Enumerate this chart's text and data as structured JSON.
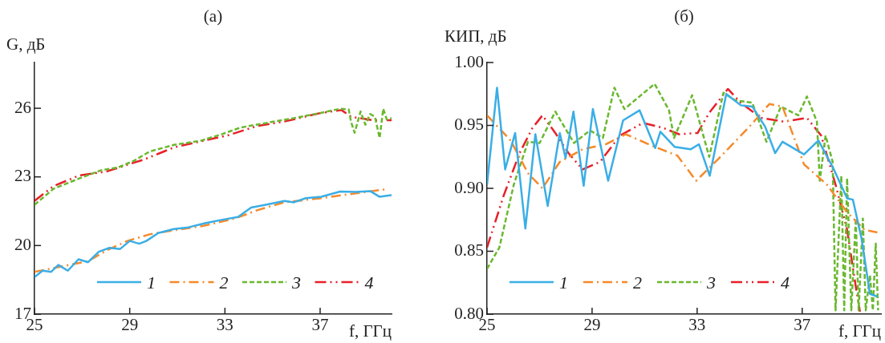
{
  "chart_data": [
    {
      "type": "line",
      "title": "(а)",
      "xlabel": "f, ГГц",
      "ylabel": "G, дБ",
      "xlim": [
        25,
        40
      ],
      "ylim": [
        17,
        28
      ],
      "xticks": [
        25,
        29,
        33,
        37
      ],
      "yticks": [
        17,
        20,
        23,
        26
      ],
      "grid": false,
      "legend": "bottom",
      "series": [
        {
          "name": "1",
          "color": "#3aaee6",
          "line_style": "solid",
          "x": [
            25,
            25.34,
            25.7,
            26.0,
            26.4,
            26.85,
            27.25,
            27.7,
            28.15,
            28.6,
            29.0,
            29.4,
            29.7,
            30.2,
            30.86,
            31.4,
            32.1,
            32.9,
            33.55,
            34.1,
            34.8,
            35.5,
            35.9,
            36.4,
            37.05,
            37.84,
            38.5,
            39.1,
            39.5,
            40
          ],
          "values": [
            18.62,
            18.9,
            18.85,
            19.15,
            18.9,
            19.4,
            19.27,
            19.73,
            19.9,
            19.85,
            20.2,
            20.08,
            20.2,
            20.55,
            20.72,
            20.78,
            20.96,
            21.13,
            21.25,
            21.66,
            21.8,
            21.95,
            21.89,
            22.07,
            22.13,
            22.36,
            22.34,
            22.38,
            22.13,
            22.2
          ]
        },
        {
          "name": "2",
          "color": "#f58a2b",
          "line_style": "dashdot",
          "x": [
            25,
            26.46,
            27.25,
            28.04,
            28.9,
            29.84,
            30.86,
            32.1,
            33.45,
            34.35,
            35.5,
            37.05,
            38.2,
            39.7
          ],
          "values": [
            18.85,
            19.15,
            19.32,
            19.79,
            20.2,
            20.49,
            20.67,
            20.86,
            21.19,
            21.54,
            21.89,
            22.07,
            22.24,
            22.45
          ]
        },
        {
          "name": "3",
          "color": "#6ab82e",
          "line_style": "dashed",
          "x": [
            25,
            25.8,
            26.9,
            27.8,
            28.5,
            29.17,
            29.84,
            30.86,
            31.98,
            32.88,
            33.67,
            34.8,
            35.9,
            37.05,
            37.84,
            38.2,
            38.3,
            38.45,
            38.7,
            38.9,
            39.1,
            39.3,
            39.5,
            39.65,
            39.8,
            40
          ],
          "values": [
            21.78,
            22.48,
            22.94,
            23.29,
            23.41,
            23.7,
            24.11,
            24.4,
            24.58,
            24.87,
            25.16,
            25.37,
            25.57,
            25.8,
            25.98,
            25.95,
            25.4,
            24.93,
            25.86,
            25.28,
            25.75,
            25.63,
            24.7,
            25.98,
            25.51,
            25.57
          ]
        },
        {
          "name": "4",
          "color": "#e8202a",
          "line_style": "dashdotdot",
          "x": [
            25,
            25.8,
            26.9,
            28.04,
            28.9,
            29.6,
            30.86,
            32.1,
            33.1,
            34.35,
            35.5,
            37.05,
            37.9,
            38.3,
            39.2,
            40
          ],
          "values": [
            21.95,
            22.6,
            23.07,
            23.24,
            23.53,
            23.76,
            24.29,
            24.58,
            24.81,
            25.22,
            25.42,
            25.8,
            25.92,
            25.63,
            25.48,
            25.48
          ]
        }
      ]
    },
    {
      "type": "line",
      "title": "(б)",
      "xlabel": "f, ГГц",
      "ylabel": "КИП, дБ",
      "xlim": [
        25,
        40
      ],
      "ylim": [
        0.8,
        1.0
      ],
      "xticks": [
        25,
        29,
        33,
        37
      ],
      "yticks": [
        {
          "value": 0.8,
          "label": "0.80"
        },
        {
          "value": 0.85,
          "label": "0.85"
        },
        {
          "value": 0.9,
          "label": "0.90"
        },
        {
          "value": 0.95,
          "label": "0.95"
        },
        {
          "value": 1.0,
          "label": "1.00"
        }
      ],
      "grid": false,
      "legend": "bottom",
      "series": [
        {
          "name": "1",
          "color": "#3aaee6",
          "line_style": "solid",
          "x": [
            25,
            25.38,
            25.69,
            26.07,
            26.46,
            26.84,
            27.31,
            27.77,
            27.99,
            28.29,
            28.68,
            29.03,
            29.61,
            30.18,
            30.81,
            31.4,
            31.6,
            32.14,
            32.75,
            33.07,
            33.48,
            34.11,
            34.66,
            35.1,
            35.59,
            35.97,
            36.25,
            37.07,
            37.62,
            38.16,
            38.71,
            38.93,
            39.26,
            39.58,
            39.86
          ],
          "values": [
            0.903,
            0.98,
            0.915,
            0.944,
            0.868,
            0.943,
            0.886,
            0.944,
            0.924,
            0.961,
            0.902,
            0.963,
            0.906,
            0.954,
            0.962,
            0.932,
            0.945,
            0.933,
            0.931,
            0.935,
            0.91,
            0.975,
            0.966,
            0.965,
            0.949,
            0.928,
            0.937,
            0.927,
            0.938,
            0.917,
            0.892,
            0.891,
            0.86,
            0.816,
            0.814
          ]
        },
        {
          "name": "2",
          "color": "#f58a2b",
          "line_style": "dashdot",
          "x": [
            25,
            25.9,
            26.56,
            27.11,
            27.77,
            28.64,
            29.52,
            30.28,
            31.38,
            32.25,
            32.96,
            33.79,
            34.99,
            35.75,
            36.25,
            37.07,
            37.94,
            38.71,
            39.37,
            39.86
          ],
          "values": [
            0.958,
            0.938,
            0.912,
            0.9,
            0.921,
            0.931,
            0.935,
            0.943,
            0.933,
            0.926,
            0.906,
            0.923,
            0.949,
            0.967,
            0.965,
            0.919,
            0.903,
            0.881,
            0.867,
            0.865
          ]
        },
        {
          "name": "3",
          "color": "#6ab82e",
          "line_style": "dashed",
          "x": [
            25,
            25.47,
            26.02,
            26.56,
            27.0,
            27.6,
            28.31,
            28.92,
            29.41,
            29.85,
            30.23,
            31.38,
            31.93,
            32.12,
            32.81,
            33.46,
            34.0,
            34.44,
            35.1,
            35.64,
            36.19,
            36.85,
            37.18,
            37.56,
            37.67,
            37.89,
            38.16,
            38.27,
            38.49,
            38.6,
            38.71,
            38.87,
            39.04,
            39.15,
            39.31,
            39.42,
            39.58,
            39.69,
            39.8,
            39.89
          ],
          "values": [
            0.836,
            0.853,
            0.903,
            0.937,
            0.936,
            0.961,
            0.936,
            0.946,
            0.94,
            0.98,
            0.963,
            0.983,
            0.962,
            0.94,
            0.974,
            0.925,
            0.976,
            0.97,
            0.968,
            0.937,
            0.965,
            0.958,
            0.973,
            0.953,
            0.906,
            0.942,
            0.921,
            0.803,
            0.91,
            0.803,
            0.908,
            0.803,
            0.876,
            0.803,
            0.876,
            0.803,
            0.831,
            0.803,
            0.856,
            0.803
          ]
        },
        {
          "name": "4",
          "color": "#e8202a",
          "line_style": "dashdotdot",
          "x": [
            25,
            25.63,
            26.24,
            26.73,
            27.11,
            27.6,
            28.1,
            28.64,
            29.3,
            30.07,
            30.94,
            31.71,
            32.31,
            33.02,
            33.46,
            34.17,
            34.66,
            35.43,
            36.3,
            37.18,
            37.72,
            38.27,
            38.71,
            39.04,
            39.2
          ],
          "values": [
            0.853,
            0.894,
            0.928,
            0.948,
            0.958,
            0.944,
            0.928,
            0.915,
            0.921,
            0.942,
            0.952,
            0.948,
            0.943,
            0.944,
            0.96,
            0.979,
            0.968,
            0.956,
            0.953,
            0.956,
            0.942,
            0.903,
            0.867,
            0.822,
            0.802
          ]
        }
      ]
    }
  ]
}
